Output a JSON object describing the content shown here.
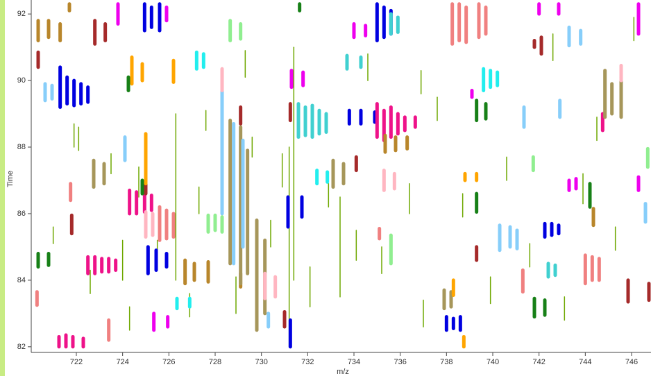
{
  "chart_data": {
    "type": "feature-map",
    "x_label": "m/z",
    "y_label": "Time",
    "xlim": [
      720.05,
      746.84
    ],
    "ylim": [
      81.83,
      92.42
    ],
    "xticks": [
      722,
      724,
      726,
      728,
      730,
      732,
      734,
      736,
      738,
      740,
      742,
      744,
      746
    ],
    "yticks": [
      82,
      84,
      86,
      88,
      90,
      92
    ],
    "series": [
      {
        "color": "#6fa800",
        "line_width": 1.5,
        "x": [
          721.0,
          721.9,
          722.6,
          723.5,
          724.0,
          724.7,
          725.5,
          726.3,
          726.9,
          727.6,
          728.9,
          729.6,
          730.4,
          731.2,
          731.4,
          732.1,
          732.9,
          733.4,
          734.6,
          735.2,
          736.4,
          737.0,
          737.6,
          738.7,
          739.9,
          740.6,
          741.6,
          742.6,
          743.1,
          743.9,
          744.5,
          745.3,
          746.1,
          730.9,
          729.3,
          722.1,
          724.3,
          727.3,
          734.1,
          736.9
        ],
        "ymin": [
          85.1,
          88.0,
          83.6,
          87.2,
          84.0,
          86.5,
          84.6,
          84.0,
          82.9,
          88.5,
          83.0,
          87.7,
          85.0,
          82.0,
          84.0,
          83.2,
          86.2,
          83.5,
          90.0,
          84.2,
          86.0,
          82.6,
          88.8,
          85.9,
          83.3,
          87.0,
          84.4,
          90.6,
          82.8,
          86.3,
          88.2,
          84.9,
          91.2,
          86.8,
          90.1,
          87.9,
          82.5,
          86.0,
          84.6,
          89.6
        ],
        "ymax": [
          85.6,
          88.7,
          84.3,
          87.8,
          85.2,
          87.4,
          85.2,
          89.0,
          83.6,
          89.1,
          84.1,
          88.3,
          85.8,
          88.0,
          91.0,
          84.4,
          86.9,
          86.5,
          90.8,
          85.0,
          86.9,
          83.4,
          89.5,
          86.6,
          84.1,
          87.7,
          85.1,
          91.4,
          83.5,
          87.2,
          88.9,
          85.6,
          91.9,
          87.8,
          90.9,
          88.6,
          83.2,
          86.8,
          85.5,
          90.3
        ]
      },
      {
        "color": "#0000e0",
        "line_width": 5,
        "x": [
          721.3,
          721.6,
          721.9,
          722.2,
          722.5,
          724.95,
          725.25,
          725.6,
          725.1,
          725.45,
          725.9,
          731.15,
          731.75,
          731.25,
          733.8,
          734.3,
          734.9,
          735.0,
          735.3,
          735.6,
          738.0,
          738.3,
          738.6,
          742.25,
          742.55,
          742.85
        ],
        "ymin": [
          89.2,
          89.3,
          89.25,
          89.3,
          89.35,
          91.5,
          91.6,
          91.5,
          84.2,
          84.3,
          84.4,
          85.6,
          85.9,
          82.0,
          88.7,
          88.7,
          88.75,
          91.2,
          91.3,
          91.4,
          82.5,
          82.55,
          82.5,
          85.3,
          85.35,
          85.4
        ],
        "ymax": [
          90.4,
          90.1,
          90.0,
          89.9,
          89.8,
          92.3,
          92.2,
          92.3,
          85.0,
          84.9,
          84.8,
          86.5,
          86.5,
          82.8,
          89.1,
          89.1,
          89.05,
          92.3,
          92.2,
          92.1,
          82.9,
          82.85,
          82.9,
          85.7,
          85.7,
          85.65
        ]
      },
      {
        "color": "#ee00ee",
        "line_width": 5,
        "x": [
          723.8,
          725.9,
          731.3,
          731.8,
          734.0,
          734.5,
          725.35,
          725.95,
          746.3,
          743.3,
          743.6,
          742.0,
          742.85,
          739.1,
          746.3
        ],
        "ymin": [
          91.7,
          91.8,
          89.8,
          89.85,
          91.3,
          91.35,
          82.5,
          82.6,
          86.7,
          86.7,
          86.75,
          92.0,
          92.0,
          89.5,
          91.4
        ],
        "ymax": [
          92.3,
          92.2,
          90.3,
          90.25,
          91.7,
          91.65,
          83.0,
          82.9,
          87.1,
          87.0,
          87.05,
          92.3,
          92.3,
          89.7,
          92.3
        ]
      },
      {
        "color": "#ee1289",
        "line_width": 5,
        "x": [
          722.5,
          722.8,
          723.1,
          723.4,
          723.7,
          724.3,
          724.6,
          724.95,
          725.25,
          735.0,
          735.3,
          735.6,
          735.9,
          736.2,
          736.65,
          744.75,
          721.25,
          721.55,
          721.85,
          722.3
        ],
        "ymin": [
          84.2,
          84.2,
          84.25,
          84.25,
          84.3,
          86.0,
          86.0,
          86.05,
          86.1,
          88.3,
          88.2,
          88.3,
          88.4,
          88.5,
          88.6,
          88.5,
          82.0,
          82.0,
          82.0,
          82.0
        ],
        "ymax": [
          84.7,
          84.7,
          84.65,
          84.65,
          84.6,
          86.7,
          86.65,
          86.6,
          86.55,
          89.3,
          89.1,
          89.2,
          89.0,
          88.9,
          88.9,
          89.0,
          82.3,
          82.35,
          82.3,
          82.25
        ]
      },
      {
        "color": "#a52a2a",
        "line_width": 5,
        "x": [
          722.8,
          723.25,
          720.35,
          731.25,
          729.1,
          739.3,
          742.1,
          741.8,
          745.85,
          746.75,
          721.8,
          731.0,
          734.1,
          725.0
        ],
        "ymin": [
          91.1,
          91.2,
          90.4,
          88.8,
          88.7,
          84.6,
          90.8,
          91.0,
          83.35,
          83.4,
          85.4,
          82.6,
          87.3,
          86.6
        ],
        "ymax": [
          91.8,
          91.7,
          90.85,
          89.3,
          89.2,
          85.0,
          91.3,
          91.2,
          84.0,
          83.9,
          85.95,
          83.05,
          87.7,
          87.0
        ]
      },
      {
        "color": "#b8862b",
        "line_width": 5,
        "x": [
          720.35,
          720.8,
          721.3,
          726.7,
          727.1,
          727.7,
          729.1,
          735.35,
          735.8,
          736.3,
          744.35,
          721.7
        ],
        "ymin": [
          91.2,
          91.3,
          91.2,
          83.9,
          84.0,
          83.95,
          83.8,
          87.85,
          87.9,
          87.95,
          85.65,
          92.1
        ],
        "ymax": [
          91.8,
          91.8,
          91.7,
          84.6,
          84.5,
          84.55,
          84.2,
          88.35,
          88.3,
          88.3,
          86.15,
          92.3
        ]
      },
      {
        "color": "#a6965a",
        "line_width": 5,
        "x": [
          728.65,
          729.1,
          729.4,
          729.8,
          730.15,
          744.85,
          745.15,
          745.55,
          722.75,
          723.2,
          733.1,
          733.55,
          737.9,
          738.2
        ],
        "ymin": [
          84.5,
          83.9,
          84.2,
          82.5,
          83.0,
          88.9,
          89.0,
          88.9,
          86.8,
          86.9,
          86.8,
          86.9,
          83.15,
          83.2
        ],
        "ymax": [
          88.8,
          88.6,
          87.9,
          85.8,
          85.2,
          90.3,
          89.9,
          90.1,
          87.6,
          87.5,
          87.6,
          87.5,
          83.7,
          83.65
        ]
      },
      {
        "color": "#ffa500",
        "line_width": 5,
        "x": [
          724.4,
          724.85,
          726.2,
          725.0,
          738.8,
          739.3,
          738.3,
          738.75
        ],
        "ymin": [
          89.9,
          90.0,
          89.95,
          86.9,
          87.0,
          87.0,
          83.55,
          82.0
        ],
        "ymax": [
          90.7,
          90.5,
          90.6,
          88.4,
          87.2,
          87.2,
          84.0,
          82.3
        ]
      },
      {
        "color": "#87cefa",
        "line_width": 5,
        "x": [
          728.3,
          728.8,
          729.2,
          720.65,
          720.95,
          724.1,
          743.3,
          743.8,
          741.35,
          740.3,
          740.75,
          741.05,
          742.9,
          746.6,
          730.3
        ],
        "ymin": [
          86.0,
          84.5,
          85.0,
          89.4,
          89.45,
          87.6,
          91.05,
          91.1,
          88.6,
          84.9,
          85.0,
          84.95,
          88.9,
          85.75,
          82.6
        ],
        "ymax": [
          89.7,
          88.7,
          88.2,
          89.9,
          89.85,
          88.3,
          91.6,
          91.5,
          89.2,
          85.65,
          85.6,
          85.5,
          89.4,
          86.3,
          83.0
        ]
      },
      {
        "color": "#22eeee",
        "line_width": 5,
        "x": [
          739.6,
          739.9,
          740.2,
          726.35,
          726.9,
          732.4,
          732.85,
          727.2,
          727.5
        ],
        "ymin": [
          89.7,
          89.8,
          89.85,
          83.15,
          83.2,
          86.9,
          86.95,
          90.35,
          90.4
        ],
        "ymax": [
          90.35,
          90.3,
          90.25,
          83.45,
          83.45,
          87.3,
          87.25,
          90.85,
          90.8
        ]
      },
      {
        "color": "#40d0d0",
        "line_width": 5,
        "x": [
          731.6,
          731.9,
          732.2,
          732.5,
          732.8,
          733.7,
          734.3,
          735.6,
          735.9,
          742.4,
          742.7
        ],
        "ymin": [
          88.3,
          88.35,
          88.3,
          88.4,
          88.45,
          90.35,
          90.4,
          91.4,
          91.45,
          84.1,
          84.15
        ],
        "ymax": [
          89.3,
          89.2,
          89.25,
          89.1,
          89.0,
          90.75,
          90.7,
          92.0,
          91.9,
          84.5,
          84.45
        ]
      },
      {
        "color": "#90ee90",
        "line_width": 5,
        "x": [
          727.7,
          728.0,
          728.3,
          728.65,
          729.1,
          741.75,
          746.7,
          735.6
        ],
        "ymin": [
          85.45,
          85.5,
          85.45,
          91.2,
          91.25,
          87.3,
          87.4,
          84.5
        ],
        "ymax": [
          85.95,
          85.95,
          85.9,
          91.8,
          91.7,
          87.7,
          87.95,
          85.35
        ]
      },
      {
        "color": "#f08080",
        "line_width": 5,
        "x": [
          738.25,
          738.55,
          738.85,
          739.4,
          739.7,
          721.75,
          744.0,
          744.3,
          744.6,
          725.6,
          725.9,
          726.2,
          735.1,
          741.3,
          723.4,
          720.3
        ],
        "ymin": [
          91.1,
          91.2,
          91.15,
          91.3,
          91.4,
          86.4,
          83.9,
          84.0,
          84.0,
          85.2,
          85.25,
          85.3,
          85.25,
          83.65,
          82.2,
          83.25
        ],
        "ymax": [
          92.3,
          92.3,
          92.2,
          92.3,
          92.2,
          86.9,
          84.75,
          84.7,
          84.65,
          86.2,
          86.1,
          86.0,
          85.55,
          84.3,
          82.8,
          83.65
        ]
      },
      {
        "color": "#ffb6c1",
        "line_width": 5,
        "x": [
          728.3,
          735.3,
          735.75,
          725.0,
          725.3,
          730.15,
          730.6,
          745.55
        ],
        "ymin": [
          89.7,
          86.7,
          86.75,
          85.3,
          85.35,
          83.45,
          83.5,
          90.0
        ],
        "ymax": [
          90.35,
          87.3,
          87.2,
          86.05,
          86.0,
          84.2,
          84.1,
          90.45
        ]
      },
      {
        "color": "#178017",
        "line_width": 5,
        "x": [
          720.35,
          720.8,
          739.3,
          739.3,
          739.7,
          741.8,
          742.25,
          744.2,
          724.85,
          731.65,
          724.25
        ],
        "ymin": [
          84.4,
          84.45,
          86.05,
          88.8,
          88.85,
          82.9,
          82.95,
          86.2,
          86.6,
          92.1,
          89.7
        ],
        "ymax": [
          84.8,
          84.8,
          86.6,
          89.4,
          89.3,
          83.45,
          83.4,
          86.9,
          87.0,
          92.3,
          90.1
        ]
      }
    ]
  }
}
